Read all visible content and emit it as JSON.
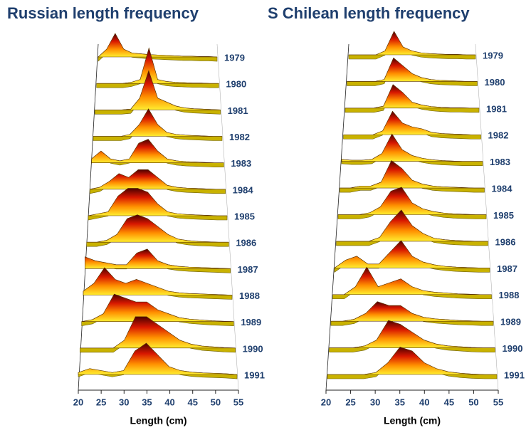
{
  "chart_data": [
    {
      "type": "ridgeline",
      "title": "Russian  length frequency",
      "xlabel": "Length (cm)",
      "xlim": [
        20,
        55
      ],
      "xticks": [
        20,
        25,
        30,
        35,
        40,
        45,
        50,
        55
      ],
      "gradient": [
        "#4a0000",
        "#d81800",
        "#ff9000",
        "#ffee30"
      ],
      "base_color": "#c9b200",
      "x": [
        20,
        22.5,
        25,
        27.5,
        30,
        32.5,
        35,
        37.5,
        40,
        42.5,
        45,
        47.5,
        50,
        52.5,
        55
      ],
      "series": [
        {
          "name": "1979",
          "values": [
            0,
            2,
            6,
            2,
            1,
            0.8,
            0.6,
            0.5,
            0.4,
            0.3,
            0.2,
            0.2,
            0.1,
            0.1,
            0
          ]
        },
        {
          "name": "1980",
          "values": [
            0,
            0,
            0,
            0,
            0.3,
            1,
            9,
            1,
            0.5,
            0.3,
            0.2,
            0.1,
            0.1,
            0,
            0
          ]
        },
        {
          "name": "1981",
          "values": [
            0,
            0,
            0,
            0,
            0.2,
            3,
            10,
            3,
            2,
            1,
            0.5,
            0.3,
            0.2,
            0.1,
            0
          ]
        },
        {
          "name": "1982",
          "values": [
            0,
            0,
            0,
            0,
            0.5,
            3,
            7,
            3,
            1,
            0.5,
            0.3,
            0.2,
            0.1,
            0,
            0
          ]
        },
        {
          "name": "1983",
          "values": [
            1,
            3,
            1,
            0.5,
            1,
            5,
            6,
            3,
            1,
            0.5,
            0.3,
            0.2,
            0.1,
            0,
            0
          ]
        },
        {
          "name": "1984",
          "values": [
            0,
            0.5,
            2,
            4,
            3,
            5,
            5,
            3,
            1,
            0.5,
            0.3,
            0.2,
            0.1,
            0,
            0
          ]
        },
        {
          "name": "1985",
          "values": [
            0,
            0.5,
            1,
            5,
            7,
            7,
            6,
            3,
            1,
            0.5,
            0.3,
            0.2,
            0.1,
            0,
            0
          ]
        },
        {
          "name": "1986",
          "values": [
            0,
            0,
            0.5,
            2,
            6,
            7,
            6,
            4,
            2,
            0.8,
            0.4,
            0.2,
            0.1,
            0,
            0
          ]
        },
        {
          "name": "1987",
          "values": [
            3,
            2,
            1.5,
            1,
            1,
            4,
            5,
            2,
            1,
            0.6,
            0.4,
            0.3,
            0.2,
            0.1,
            0
          ]
        },
        {
          "name": "1988",
          "values": [
            1,
            3,
            7,
            4,
            3,
            4,
            3,
            2,
            1,
            0.6,
            0.4,
            0.3,
            0.2,
            0.1,
            0
          ]
        },
        {
          "name": "1989",
          "values": [
            0,
            0.5,
            2,
            7,
            6,
            5,
            5,
            3,
            2,
            1,
            0.6,
            0.4,
            0.2,
            0.1,
            0
          ]
        },
        {
          "name": "1990",
          "values": [
            0,
            0,
            0,
            0,
            2,
            8,
            8,
            6,
            4,
            2,
            1,
            0.5,
            0.3,
            0.1,
            0
          ]
        },
        {
          "name": "1991",
          "values": [
            0.5,
            1.5,
            1,
            0.5,
            1,
            6,
            8,
            5,
            2,
            1,
            0.6,
            0.4,
            0.3,
            0.2,
            0
          ]
        }
      ]
    },
    {
      "type": "ridgeline",
      "title": "S Chilean length frequency",
      "xlabel": "Length (cm)",
      "xlim": [
        20,
        55
      ],
      "xticks": [
        20,
        25,
        30,
        35,
        40,
        45,
        50,
        55
      ],
      "gradient": [
        "#4a0000",
        "#d81800",
        "#ff9000",
        "#ffee30"
      ],
      "base_color": "#c9b200",
      "x": [
        20,
        22.5,
        25,
        27.5,
        30,
        32.5,
        35,
        37.5,
        40,
        42.5,
        45,
        47.5,
        50,
        52.5,
        55
      ],
      "series": [
        {
          "name": "1979",
          "values": [
            0,
            0,
            0,
            0,
            1,
            6,
            2,
            1,
            0.5,
            0.3,
            0.2,
            0.1,
            0.1,
            0,
            0
          ]
        },
        {
          "name": "1980",
          "values": [
            0,
            0,
            0,
            0,
            0.5,
            6,
            4,
            2,
            1,
            0.5,
            0.3,
            0.2,
            0.1,
            0,
            0
          ]
        },
        {
          "name": "1981",
          "values": [
            0,
            0,
            0,
            0,
            0.5,
            6,
            4,
            1.5,
            0.8,
            0.4,
            0.2,
            0.1,
            0.1,
            0,
            0
          ]
        },
        {
          "name": "1982",
          "values": [
            0,
            0,
            0,
            0,
            1,
            6,
            3,
            2,
            1.5,
            0.6,
            0.3,
            0.2,
            0.1,
            0,
            0
          ]
        },
        {
          "name": "1983",
          "values": [
            0.5,
            0.3,
            0.3,
            0.5,
            2,
            7,
            3,
            1.5,
            0.8,
            0.4,
            0.2,
            0.1,
            0,
            0,
            0
          ]
        },
        {
          "name": "1984",
          "values": [
            0,
            0,
            0.5,
            0.5,
            1.5,
            7,
            5,
            2,
            1,
            0.5,
            0.3,
            0.2,
            0.1,
            0,
            0
          ]
        },
        {
          "name": "1985",
          "values": [
            0,
            0,
            0,
            0.5,
            2,
            6,
            7,
            3,
            1.5,
            0.8,
            0.4,
            0.2,
            0.1,
            0,
            0
          ]
        },
        {
          "name": "1986",
          "values": [
            0,
            0,
            0,
            0,
            1,
            5,
            8,
            4,
            2,
            0.8,
            0.4,
            0.2,
            0.1,
            0,
            0
          ]
        },
        {
          "name": "1987",
          "values": [
            0,
            2,
            3,
            1,
            1,
            4,
            7,
            3,
            1.5,
            0.8,
            0.4,
            0.2,
            0.1,
            0,
            0
          ]
        },
        {
          "name": "1988",
          "values": [
            0,
            0,
            2,
            7,
            2,
            3,
            4,
            2,
            1,
            0.6,
            0.4,
            0.2,
            0.1,
            0,
            0
          ]
        },
        {
          "name": "1989",
          "values": [
            0,
            0,
            0.5,
            2,
            5,
            4,
            4,
            2,
            1,
            0.6,
            0.4,
            0.2,
            0.1,
            0,
            0
          ]
        },
        {
          "name": "1990",
          "values": [
            0,
            0,
            0,
            0.5,
            2,
            7,
            6,
            4,
            2,
            1,
            0.5,
            0.3,
            0.1,
            0,
            0
          ]
        },
        {
          "name": "1991",
          "values": [
            0,
            0,
            0,
            0,
            0.5,
            3,
            7,
            6,
            3,
            1.5,
            0.7,
            0.3,
            0.1,
            0,
            0
          ]
        }
      ]
    }
  ]
}
